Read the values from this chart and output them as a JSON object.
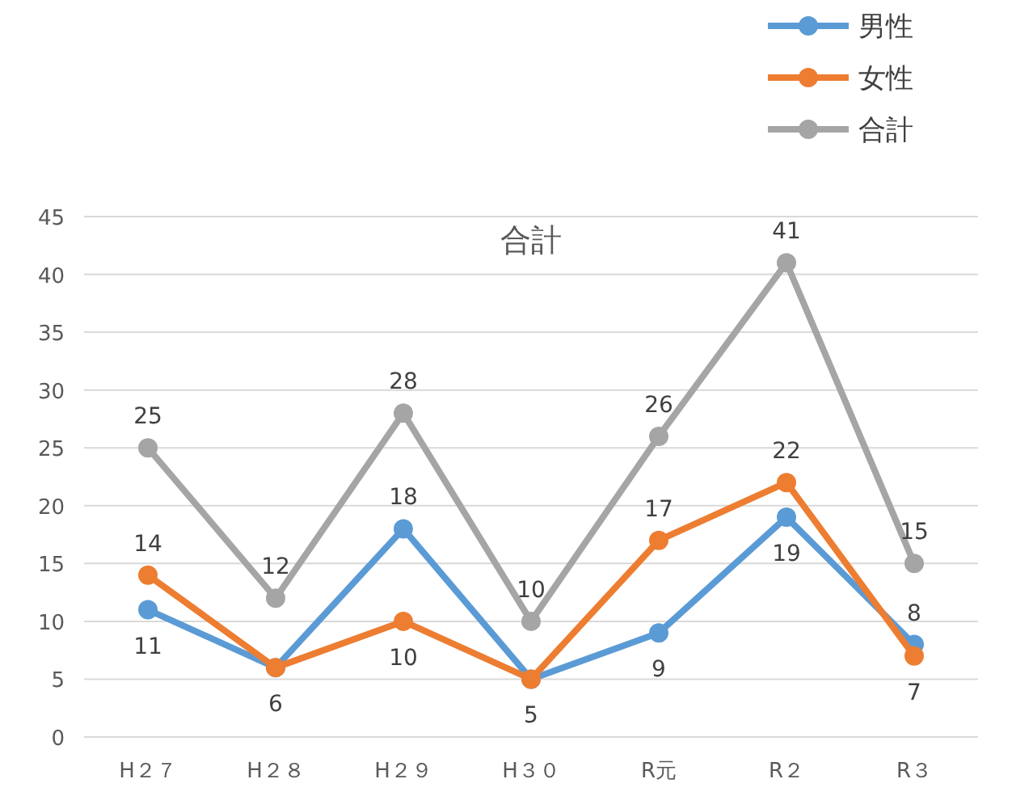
{
  "chart_data": {
    "type": "line",
    "title": "合計",
    "categories": [
      "H２７",
      "H２８",
      "H２９",
      "H３０",
      "R元",
      "R２",
      "R３"
    ],
    "series": [
      {
        "name": "男性",
        "color": "#5b9bd5",
        "values": [
          11,
          6,
          18,
          5,
          9,
          19,
          8
        ],
        "value_labels": [
          "11",
          "6",
          "18",
          "5",
          "9",
          "19",
          "8"
        ]
      },
      {
        "name": "女性",
        "color": "#ed7d31",
        "values": [
          14,
          6,
          10,
          5,
          17,
          22,
          7
        ],
        "value_labels": [
          "14",
          null,
          "10",
          null,
          "17",
          "22",
          "7"
        ]
      },
      {
        "name": "合計",
        "color": "#a5a5a5",
        "values": [
          25,
          12,
          28,
          10,
          26,
          41,
          15
        ],
        "value_labels": [
          "25",
          "12",
          "28",
          "10",
          "26",
          "41",
          "15"
        ]
      }
    ],
    "ylim": [
      0,
      45
    ],
    "yticks": [
      0,
      5,
      10,
      15,
      20,
      25,
      30,
      35,
      40,
      45
    ],
    "grid": "y",
    "legend": "top right",
    "marker": "circle",
    "line_style": "solid"
  }
}
